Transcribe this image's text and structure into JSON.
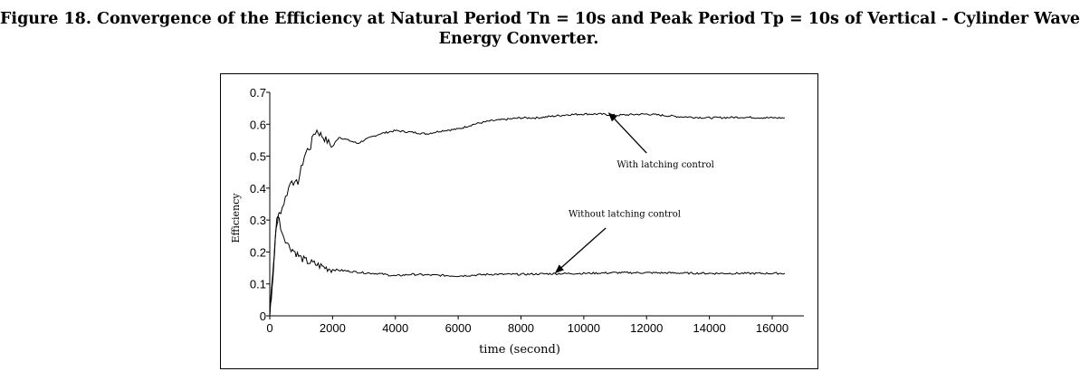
{
  "caption": {
    "line1": "Figure 18. Convergence of the Efficiency at Natural Period Tn = 10s and Peak Period Tp = 10s of Vertical - Cylinder Wave",
    "line2": "Energy Converter."
  },
  "chart_data": {
    "type": "line",
    "title": "",
    "xlabel": "time (second)",
    "ylabel": "Efficiency",
    "xlim": [
      0,
      17000
    ],
    "ylim": [
      0,
      0.7
    ],
    "x_ticks": [
      0,
      2000,
      4000,
      6000,
      8000,
      10000,
      12000,
      14000,
      16000
    ],
    "y_ticks": [
      0,
      0.1,
      0.2,
      0.3,
      0.4,
      0.5,
      0.6,
      0.7
    ],
    "x_tick_labels": [
      "0",
      "2000",
      "4000",
      "6000",
      "8000",
      "10000",
      "12000",
      "14000",
      "16000"
    ],
    "y_tick_labels": [
      "0",
      "0.1",
      "0.2",
      "0.3",
      "0.4",
      "0.5",
      "0.6",
      "0.7"
    ],
    "grid": false,
    "legend": "none",
    "series": [
      {
        "x": [
          0,
          50,
          100,
          150,
          200,
          250,
          300,
          400,
          500,
          600,
          700,
          800,
          900,
          1000,
          1100,
          1200,
          1300,
          1400,
          1500,
          1700,
          2000,
          2200,
          2500,
          2800,
          3000,
          3500,
          4000,
          4500,
          5000,
          5500,
          6000,
          6500,
          7000,
          7500,
          8000,
          8500,
          9000,
          9500,
          10000,
          10500,
          11000,
          11500,
          12000,
          12500,
          13000,
          14000,
          15000,
          16000,
          16400
        ],
        "y": [
          0.0,
          0.09,
          0.14,
          0.2,
          0.27,
          0.3,
          0.32,
          0.34,
          0.37,
          0.4,
          0.43,
          0.41,
          0.42,
          0.46,
          0.5,
          0.52,
          0.53,
          0.57,
          0.58,
          0.56,
          0.53,
          0.56,
          0.55,
          0.54,
          0.55,
          0.57,
          0.58,
          0.575,
          0.57,
          0.58,
          0.585,
          0.6,
          0.61,
          0.615,
          0.62,
          0.62,
          0.625,
          0.63,
          0.632,
          0.632,
          0.628,
          0.63,
          0.632,
          0.628,
          0.624,
          0.62,
          0.622,
          0.62,
          0.62
        ]
      },
      {
        "x": [
          0,
          50,
          100,
          150,
          200,
          250,
          300,
          400,
          500,
          600,
          800,
          1000,
          1200,
          1500,
          1800,
          2000,
          2500,
          3000,
          3500,
          4000,
          4500,
          5000,
          6000,
          7000,
          8000,
          9000,
          10000,
          11000,
          12000,
          13000,
          14000,
          15000,
          16000,
          16400
        ],
        "y": [
          0.0,
          0.06,
          0.12,
          0.2,
          0.28,
          0.32,
          0.3,
          0.26,
          0.24,
          0.22,
          0.2,
          0.18,
          0.17,
          0.16,
          0.15,
          0.145,
          0.14,
          0.135,
          0.132,
          0.125,
          0.13,
          0.128,
          0.125,
          0.13,
          0.13,
          0.132,
          0.133,
          0.135,
          0.135,
          0.134,
          0.133,
          0.133,
          0.133,
          0.133
        ]
      }
    ],
    "annotations": [
      {
        "text": "With latching control",
        "x": 12600,
        "y": 0.465,
        "arrow_to": [
          10800,
          0.635
        ],
        "arrow_from": [
          12000,
          0.51
        ]
      },
      {
        "text": "Without latching control",
        "x": 11300,
        "y": 0.31,
        "arrow_to": [
          9100,
          0.135
        ],
        "arrow_from": [
          10700,
          0.275
        ]
      }
    ]
  }
}
